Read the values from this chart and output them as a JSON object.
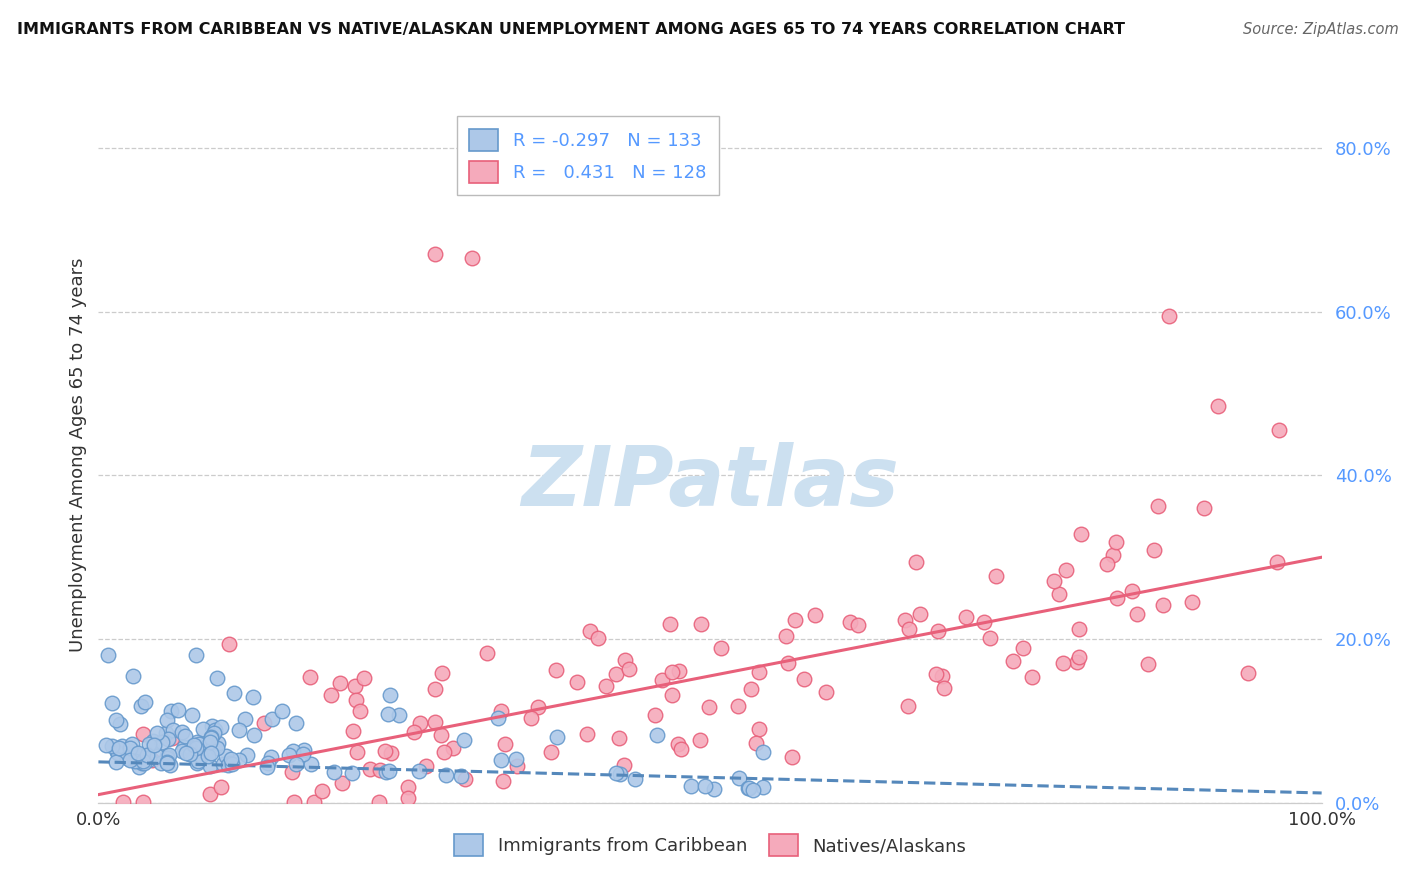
{
  "title": "IMMIGRANTS FROM CARIBBEAN VS NATIVE/ALASKAN UNEMPLOYMENT AMONG AGES 65 TO 74 YEARS CORRELATION CHART",
  "source": "Source: ZipAtlas.com",
  "ylabel": "Unemployment Among Ages 65 to 74 years",
  "yticks": [
    "0.0%",
    "20.0%",
    "40.0%",
    "60.0%",
    "80.0%"
  ],
  "ytick_vals": [
    0.0,
    0.2,
    0.4,
    0.6,
    0.8
  ],
  "legend_label1": "Immigrants from Caribbean",
  "legend_label2": "Natives/Alaskans",
  "r1": "-0.297",
  "n1": "133",
  "r2": "0.431",
  "n2": "128",
  "color_blue_fill": "#adc8e8",
  "color_blue_edge": "#6699cc",
  "color_pink_fill": "#f5aabb",
  "color_pink_edge": "#e8607a",
  "color_line_blue": "#5588bb",
  "color_line_pink": "#e8607a",
  "watermark_color": "#cce0f0",
  "background_color": "#ffffff",
  "grid_color": "#cccccc",
  "title_color": "#111111",
  "source_color": "#666666",
  "axis_label_color": "#333333",
  "tick_label_color_right": "#5599ff",
  "seed1": 42,
  "seed2": 7
}
